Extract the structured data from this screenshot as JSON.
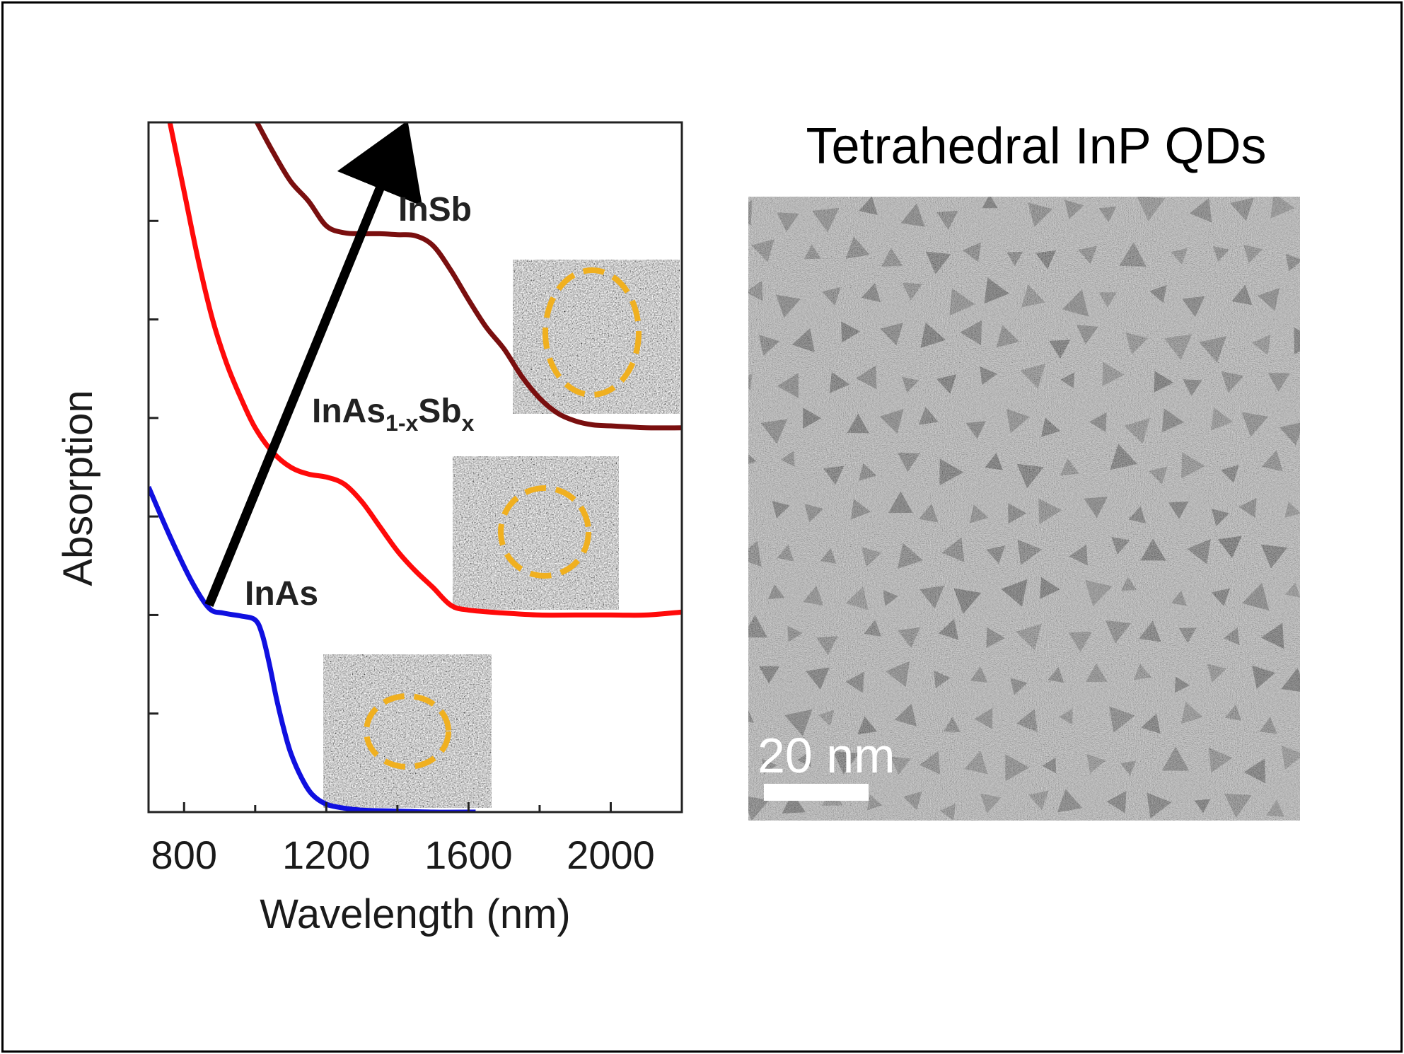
{
  "chart_data": {
    "type": "line",
    "xlabel": "Wavelength (nm)",
    "ylabel": "Absorption",
    "xlim": [
      700,
      2200
    ],
    "x_ticks": [
      800,
      1200,
      1600,
      2000
    ],
    "x_tick_labels": [
      "800",
      "1200",
      "1600",
      "2000"
    ],
    "ylim": [
      0,
      7
    ],
    "y_ticks": [
      1,
      2,
      3,
      4,
      5,
      6
    ],
    "y_tick_labels_shown": false,
    "grid": false,
    "series": [
      {
        "name": "InAs",
        "color": "#1010e0",
        "x": [
          700,
          760,
          820,
          870,
          910,
          960,
          1000,
          1020,
          1040,
          1060,
          1080,
          1100,
          1130,
          1160,
          1200,
          1250,
          1300,
          1400,
          1500,
          1620
        ],
        "y": [
          3.3,
          2.8,
          2.35,
          2.07,
          2.02,
          1.99,
          1.95,
          1.8,
          1.5,
          1.15,
          0.85,
          0.6,
          0.35,
          0.18,
          0.08,
          0.04,
          0.02,
          0.01,
          0.0,
          0.0
        ]
      },
      {
        "name": "InAs1-xSbx",
        "color": "#ff0a0a",
        "x": [
          760,
          800,
          840,
          880,
          920,
          960,
          1000,
          1050,
          1100,
          1150,
          1200,
          1250,
          1300,
          1350,
          1400,
          1450,
          1500,
          1550,
          1600,
          1700,
          1800,
          1900,
          2000,
          2100,
          2200
        ],
        "y": [
          7.0,
          6.3,
          5.6,
          5.0,
          4.55,
          4.2,
          3.9,
          3.65,
          3.5,
          3.43,
          3.4,
          3.33,
          3.15,
          2.9,
          2.65,
          2.45,
          2.28,
          2.1,
          2.05,
          2.02,
          2.0,
          2.0,
          2.0,
          2.0,
          2.03
        ]
      },
      {
        "name": "InSb",
        "color": "#7a0f0f",
        "x": [
          1005,
          1050,
          1100,
          1150,
          1200,
          1250,
          1300,
          1350,
          1400,
          1450,
          1500,
          1550,
          1600,
          1650,
          1700,
          1750,
          1800,
          1850,
          1900,
          1950,
          2000,
          2050,
          2100,
          2200
        ],
        "y": [
          7.0,
          6.7,
          6.4,
          6.2,
          5.95,
          5.88,
          5.87,
          5.87,
          5.86,
          5.85,
          5.75,
          5.5,
          5.2,
          4.92,
          4.7,
          4.42,
          4.2,
          4.05,
          3.97,
          3.93,
          3.92,
          3.91,
          3.9,
          3.9
        ]
      }
    ],
    "annotations": [
      {
        "text": "InSb",
        "series": "InSb"
      },
      {
        "text": "InAs",
        "sub": "1-x",
        "text2": "Sb",
        "sub2": "x",
        "series": "InAs1-xSbx"
      },
      {
        "text": "InAs",
        "series": "InAs"
      }
    ],
    "arrow": {
      "from": [
        870,
        2.1
      ],
      "to": [
        1370,
        6.5
      ],
      "color": "#000000"
    },
    "inset_ring_color": "#f0b020"
  },
  "tem_panel": {
    "title": "Tetrahedral InP QDs",
    "scale_bar_label": "20 nm"
  }
}
